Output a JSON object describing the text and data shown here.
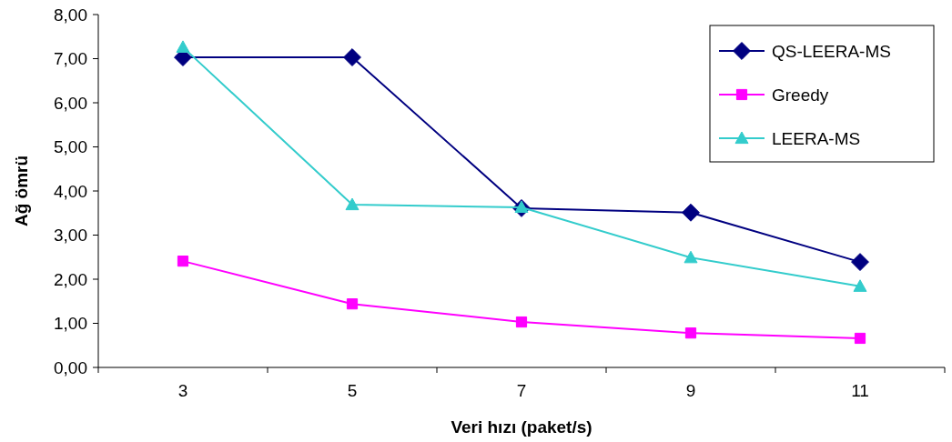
{
  "chart_data": {
    "type": "line",
    "xlabel": "Veri hızı (paket/s)",
    "ylabel": "Ağ ömrü",
    "categories": [
      "3",
      "5",
      "7",
      "9",
      "11"
    ],
    "series": [
      {
        "name": "QS-LEERA-MS",
        "color": "#000080",
        "marker": "diamond",
        "values": [
          7.03,
          7.03,
          3.61,
          3.51,
          2.39
        ]
      },
      {
        "name": "Greedy",
        "color": "#ff00ff",
        "marker": "square",
        "values": [
          2.41,
          1.44,
          1.03,
          0.78,
          0.66
        ]
      },
      {
        "name": "LEERA-MS",
        "color": "#33cccc",
        "marker": "triangle",
        "values": [
          7.26,
          3.69,
          3.63,
          2.49,
          1.84
        ]
      }
    ],
    "ylim": [
      0,
      8
    ],
    "yticks": [
      {
        "value": 0,
        "label": "0,00"
      },
      {
        "value": 1,
        "label": "1,00"
      },
      {
        "value": 2,
        "label": "2,00"
      },
      {
        "value": 3,
        "label": "3,00"
      },
      {
        "value": 4,
        "label": "4,00"
      },
      {
        "value": 5,
        "label": "5,00"
      },
      {
        "value": 6,
        "label": "6,00"
      },
      {
        "value": 7,
        "label": "7,00"
      },
      {
        "value": 8,
        "label": "8,00"
      }
    ],
    "legend": "top right",
    "grid": false
  }
}
